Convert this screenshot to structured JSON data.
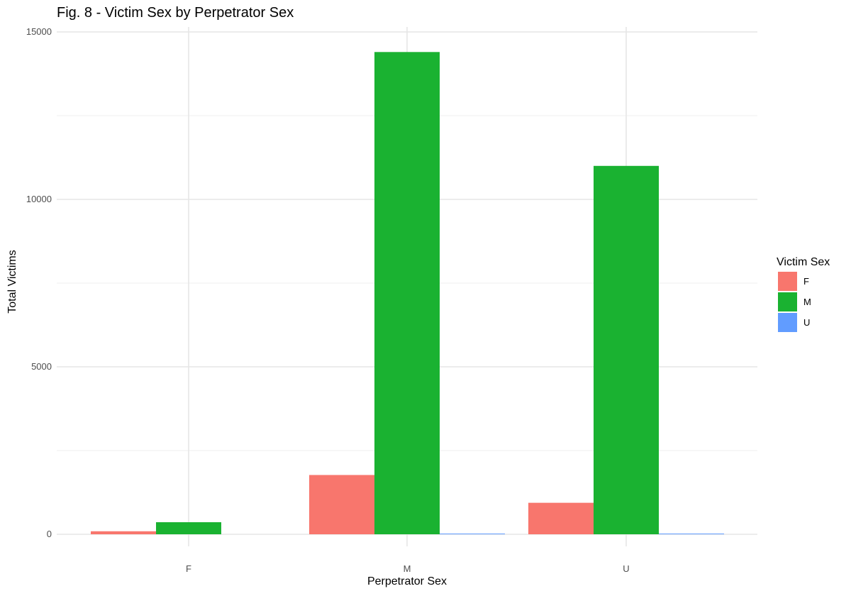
{
  "chart_data": {
    "type": "bar",
    "title": "Fig. 8 - Victim Sex by Perpetrator Sex",
    "xlabel": "Perpetrator Sex",
    "ylabel": "Total Victims",
    "categories": [
      "F",
      "M",
      "U"
    ],
    "series": [
      {
        "name": "F",
        "color": "#F8766D",
        "values": [
          90,
          1770,
          940
        ]
      },
      {
        "name": "M",
        "color": "#1AB231",
        "values": [
          360,
          14400,
          11000
        ]
      },
      {
        "name": "U",
        "color": "#619CFF",
        "values": [
          0,
          12,
          10
        ]
      }
    ],
    "ylim": [
      0,
      15000
    ],
    "yticks": [
      0,
      5000,
      10000,
      15000
    ],
    "grid": true,
    "legend": {
      "title": "Victim Sex",
      "position": "right"
    }
  }
}
